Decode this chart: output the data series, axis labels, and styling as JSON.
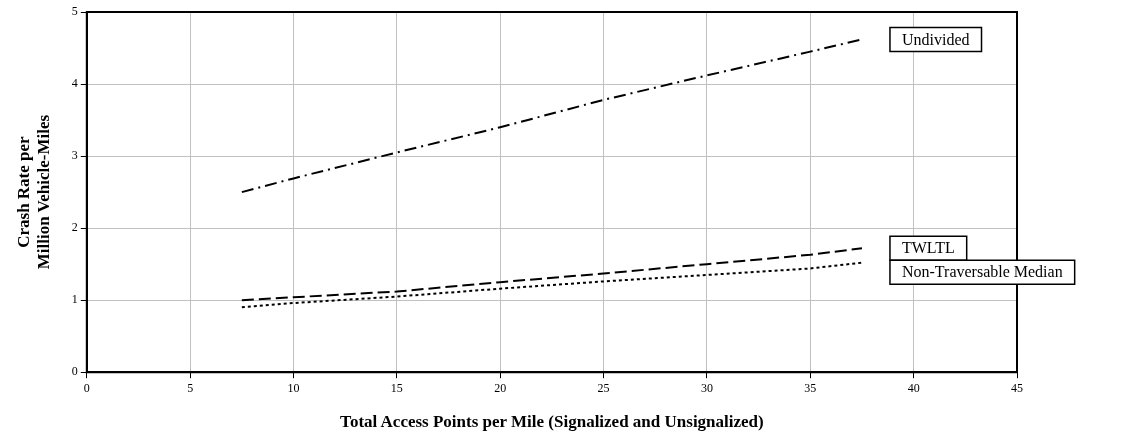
{
  "chart_data": {
    "type": "line",
    "xlabel": "Total Access Points per Mile (Signalized and Unsignalized)",
    "ylabel": "Crash Rate per\nMillion Vehicle-Miles",
    "x": [
      7.5,
      10,
      15,
      20,
      25,
      30,
      35,
      37.5
    ],
    "series": [
      {
        "name": "Undivided",
        "color": "#000000",
        "line_style": "dashdot",
        "values": [
          2.5,
          2.69,
          3.05,
          3.4,
          3.78,
          4.12,
          4.45,
          4.62
        ]
      },
      {
        "name": "TWLTL",
        "color": "#000000",
        "line_style": "dashed",
        "values": [
          1.0,
          1.04,
          1.12,
          1.25,
          1.37,
          1.5,
          1.63,
          1.72
        ]
      },
      {
        "name": "Non-Traversable Median",
        "color": "#000000",
        "line_style": "dotted",
        "values": [
          0.9,
          0.96,
          1.05,
          1.16,
          1.26,
          1.35,
          1.44,
          1.52
        ]
      }
    ],
    "xlim": [
      0,
      45
    ],
    "xticks": [
      0,
      5,
      10,
      15,
      20,
      25,
      30,
      35,
      40,
      45
    ],
    "ylim": [
      0,
      5
    ],
    "yticks": [
      0,
      1,
      2,
      3,
      4,
      5
    ],
    "grid": true,
    "legend": "right",
    "marker": "none"
  }
}
